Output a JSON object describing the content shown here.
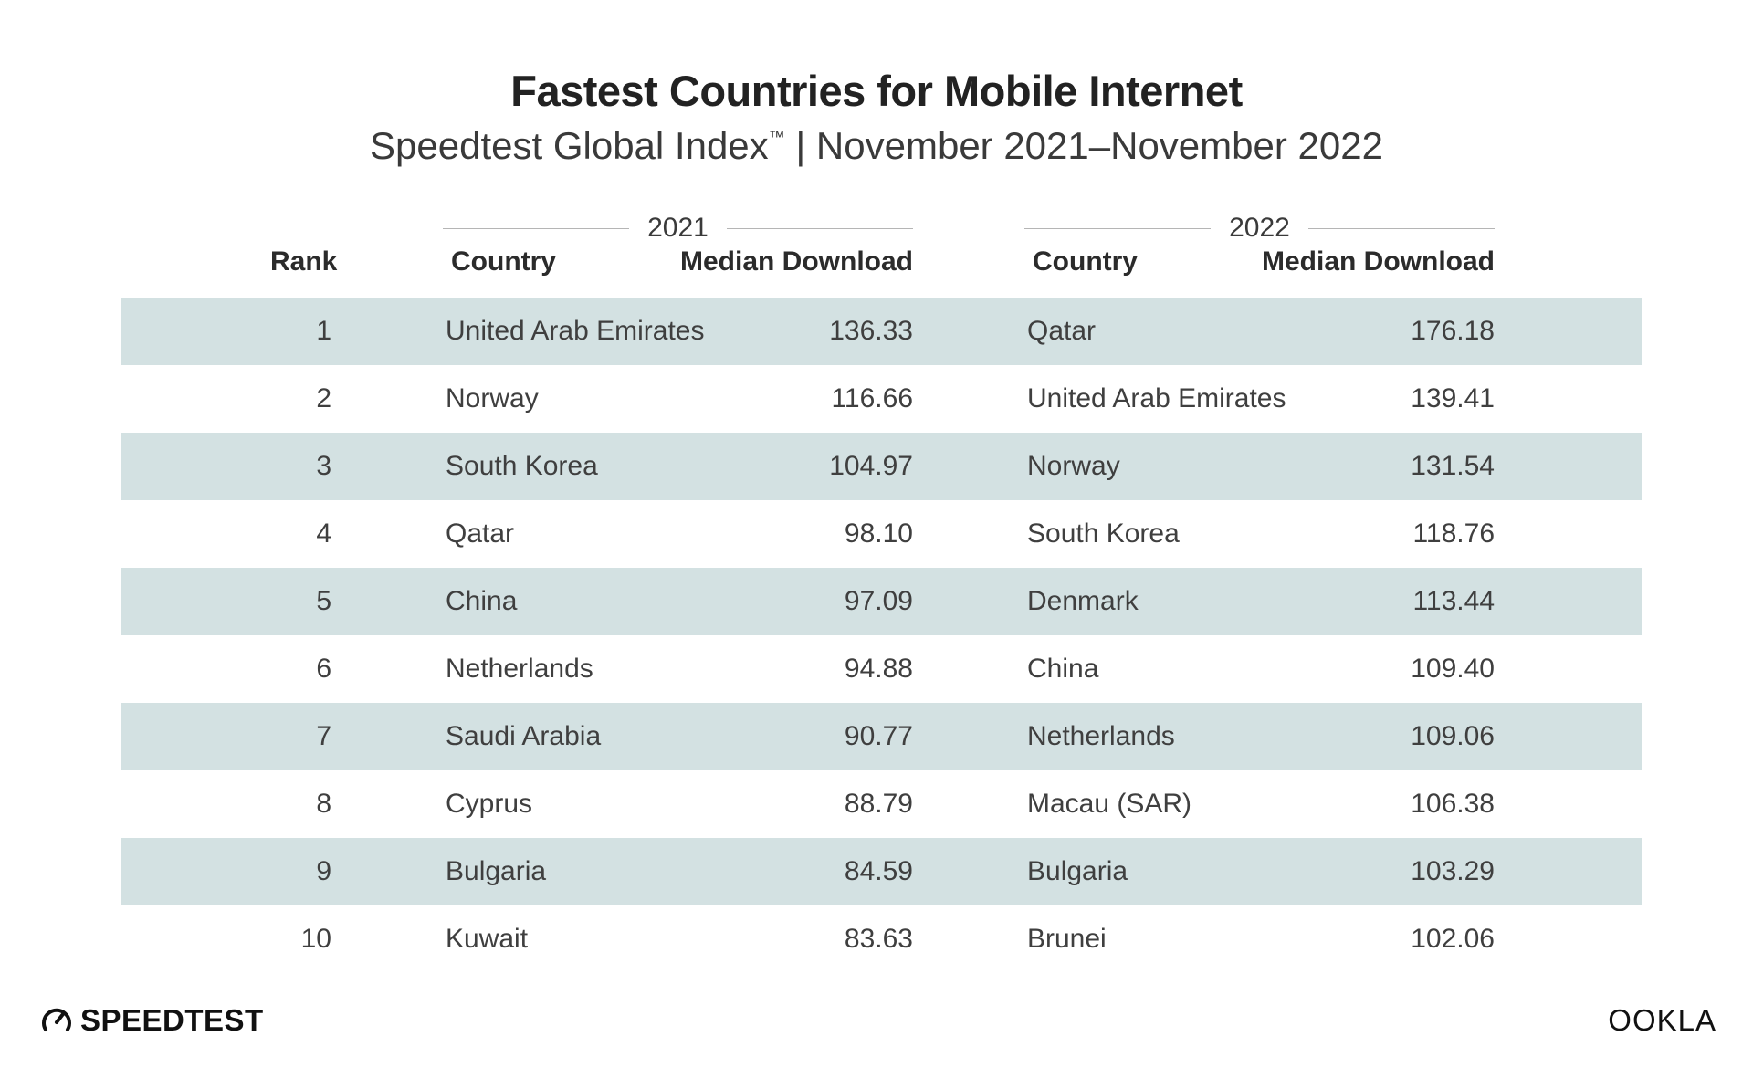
{
  "chart_data": {
    "type": "table",
    "title": "Fastest Countries for Mobile Internet",
    "subtitle_main": "Speedtest Global Index",
    "subtitle_tm": "™",
    "subtitle_rest": " | November 2021–November 2022",
    "years": [
      "2021",
      "2022"
    ],
    "headers": {
      "rank": "Rank",
      "country": "Country",
      "median_download": "Median Download"
    },
    "rows": [
      {
        "rank": "1",
        "country_2021": "United Arab Emirates",
        "download_2021": "136.33",
        "country_2022": "Qatar",
        "download_2022": "176.18"
      },
      {
        "rank": "2",
        "country_2021": "Norway",
        "download_2021": "116.66",
        "country_2022": "United Arab Emirates",
        "download_2022": "139.41"
      },
      {
        "rank": "3",
        "country_2021": "South Korea",
        "download_2021": "104.97",
        "country_2022": "Norway",
        "download_2022": "131.54"
      },
      {
        "rank": "4",
        "country_2021": "Qatar",
        "download_2021": "98.10",
        "country_2022": "South Korea",
        "download_2022": "118.76"
      },
      {
        "rank": "5",
        "country_2021": "China",
        "download_2021": "97.09",
        "country_2022": "Denmark",
        "download_2022": "113.44"
      },
      {
        "rank": "6",
        "country_2021": "Netherlands",
        "download_2021": "94.88",
        "country_2022": "China",
        "download_2022": "109.40"
      },
      {
        "rank": "7",
        "country_2021": "Saudi Arabia",
        "download_2021": "90.77",
        "country_2022": "Netherlands",
        "download_2022": "109.06"
      },
      {
        "rank": "8",
        "country_2021": "Cyprus",
        "download_2021": "88.79",
        "country_2022": "Macau (SAR)",
        "download_2022": "106.38"
      },
      {
        "rank": "9",
        "country_2021": "Bulgaria",
        "download_2021": "84.59",
        "country_2022": "Bulgaria",
        "download_2022": "103.29"
      },
      {
        "rank": "10",
        "country_2021": "Kuwait",
        "download_2021": "83.63",
        "country_2022": "Brunei",
        "download_2022": "102.06"
      }
    ],
    "colors": {
      "band": "#d3e1e2",
      "text": "#3f3f3f",
      "title": "#222222"
    }
  },
  "footer": {
    "left_logo_text": "SPEEDTEST",
    "left_logo_icon": "speedometer-icon",
    "right_logo_text": "OOKLA"
  }
}
